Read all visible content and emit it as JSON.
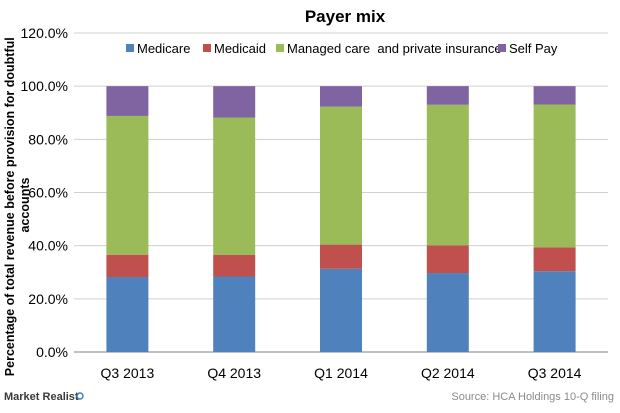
{
  "chart_data": {
    "type": "bar",
    "stacked": true,
    "title": "Payer mix",
    "ylabel": "Percentage of total revenue before provision for doubtful accounts",
    "xlabel": "",
    "categories": [
      "Q3 2013",
      "Q4 2013",
      "Q1 2014",
      "Q2 2014",
      "Q3 2014"
    ],
    "series": [
      {
        "name": "Medicare",
        "color": "#4f81bd",
        "values": [
          28.2,
          28.4,
          31.3,
          29.7,
          30.4
        ]
      },
      {
        "name": "Medicaid",
        "color": "#c0504d",
        "values": [
          8.4,
          8.1,
          9.1,
          10.4,
          9.0
        ]
      },
      {
        "name": "Managed care  and private insurance",
        "color": "#9bbb59",
        "values": [
          52.2,
          51.7,
          51.9,
          52.9,
          53.7
        ]
      },
      {
        "name": "Self Pay",
        "color": "#8064a2",
        "values": [
          11.2,
          11.8,
          7.7,
          7.0,
          6.9
        ]
      }
    ],
    "ylim": [
      0,
      120
    ],
    "yticks": [
      "0.0%",
      "20.0%",
      "40.0%",
      "60.0%",
      "80.0%",
      "100.0%",
      "120.0%"
    ],
    "grid": true,
    "legend_position": "top"
  },
  "footer": {
    "source": "Source: HCA Holdings 10-Q filing",
    "brand": "Market Realist"
  }
}
